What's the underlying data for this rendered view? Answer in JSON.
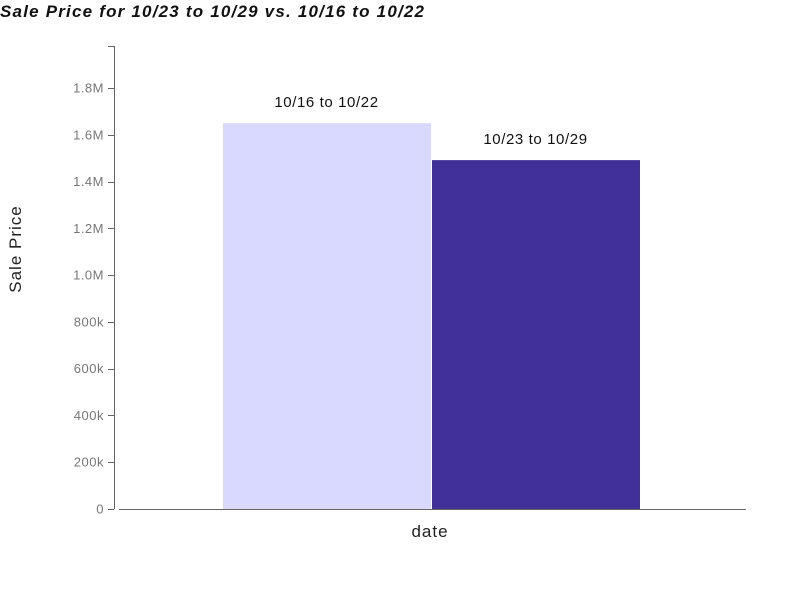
{
  "chart_data": {
    "type": "bar",
    "title": "Sale Price for 10/23 to 10/29 vs. 10/16 to 10/22",
    "xlabel": "date",
    "ylabel": "Sale Price",
    "ylim": [
      0,
      1980000
    ],
    "yticks": [
      {
        "value": 0,
        "label": "0"
      },
      {
        "value": 200000,
        "label": "200k"
      },
      {
        "value": 400000,
        "label": "400k"
      },
      {
        "value": 600000,
        "label": "600k"
      },
      {
        "value": 800000,
        "label": "800k"
      },
      {
        "value": 1000000,
        "label": "1.0M"
      },
      {
        "value": 1200000,
        "label": "1.2M"
      },
      {
        "value": 1400000,
        "label": "1.4M"
      },
      {
        "value": 1600000,
        "label": "1.6M"
      },
      {
        "value": 1800000,
        "label": "1.8M"
      }
    ],
    "grid": false,
    "series": [
      {
        "name": "10/16 to 10/22",
        "values": [
          1650000
        ],
        "color": "#d9d9ff"
      },
      {
        "name": "10/23 to 10/29",
        "values": [
          1492000
        ],
        "color": "#403097"
      }
    ]
  }
}
